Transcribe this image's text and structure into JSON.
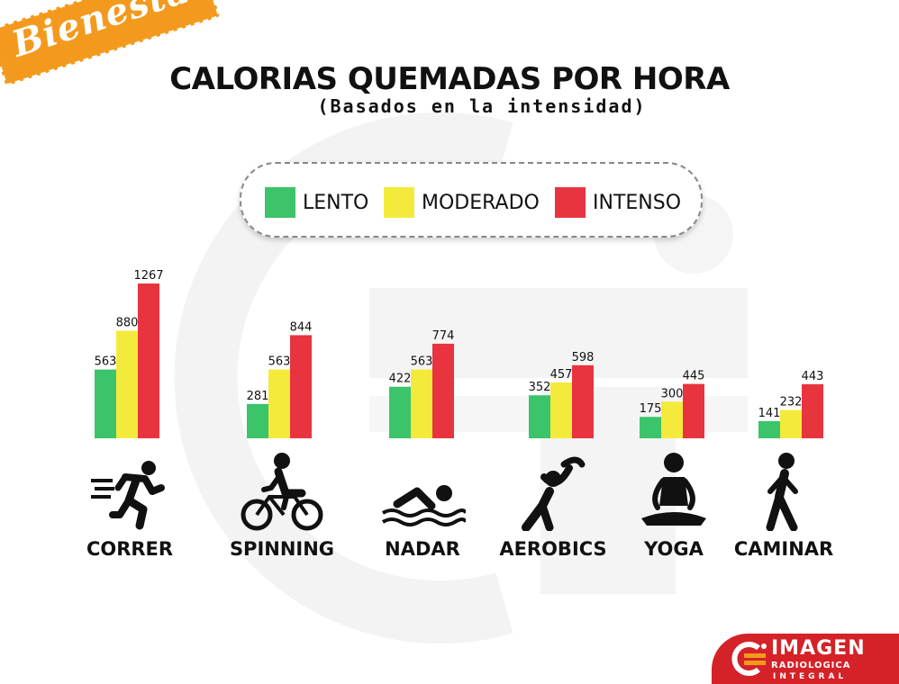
{
  "ribbon": {
    "text": "Bienestar",
    "color": "#f39a1e"
  },
  "title": "CALORIAS QUEMADAS POR HORA",
  "subtitle": "(Basados en la intensidad)",
  "legend": [
    {
      "label": "LENTO",
      "color": "#3cc46a"
    },
    {
      "label": "MODERADO",
      "color": "#f4ea3c"
    },
    {
      "label": "INTENSO",
      "color": "#e8343f"
    }
  ],
  "chart_data": {
    "type": "bar",
    "title": "CALORIAS QUEMADAS POR HORA",
    "subtitle": "(Basados en la intensidad)",
    "categories": [
      "CORRER",
      "SPINNING",
      "NADAR",
      "AEROBICS",
      "YOGA",
      "CAMINAR"
    ],
    "series": [
      {
        "name": "LENTO",
        "color": "#3cc46a",
        "values": [
          563,
          281,
          422,
          352,
          175,
          141
        ]
      },
      {
        "name": "MODERADO",
        "color": "#f4ea3c",
        "values": [
          880,
          563,
          563,
          457,
          300,
          232
        ]
      },
      {
        "name": "INTENSO",
        "color": "#e8343f",
        "values": [
          1267,
          844,
          774,
          598,
          445,
          443
        ]
      }
    ],
    "xlabel": "",
    "ylabel": "",
    "grid": false,
    "legend_position": "top"
  },
  "activities": [
    {
      "label": "CORRER",
      "icon": "runner-icon"
    },
    {
      "label": "SPINNING",
      "icon": "cyclist-icon"
    },
    {
      "label": "NADAR",
      "icon": "swimmer-icon"
    },
    {
      "label": "AEROBICS",
      "icon": "stretching-icon"
    },
    {
      "label": "YOGA",
      "icon": "meditation-icon"
    },
    {
      "label": "CAMINAR",
      "icon": "walker-icon"
    }
  ],
  "logo": {
    "line1": "IMAGEN",
    "line2": "RADIOLOGICA",
    "line3": "INTEGRAL",
    "color": "#d42228"
  }
}
